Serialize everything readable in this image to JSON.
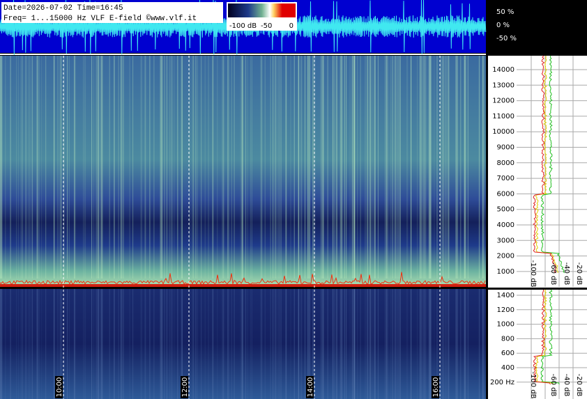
{
  "header": {
    "line1": "Date=2026-07-02 Time=16:45",
    "line2": "Freq= 1...15000 Hz   VLF E-field ©www.vlf.it"
  },
  "colorbar": {
    "labels": [
      "-100 dB",
      "-50",
      "0"
    ]
  },
  "waveform": {
    "labels": [
      "50 %",
      "0 %",
      "-50 %"
    ]
  },
  "spectrogram": {
    "freq_labels": [
      "14000",
      "13000",
      "12000",
      "11000",
      "10000",
      "9000",
      "8000",
      "7000",
      "6000",
      "5000",
      "4000",
      "3000",
      "2000",
      "1000"
    ]
  },
  "zoom": {
    "freq_labels": [
      "1400",
      "1200",
      "1000",
      "800",
      "600",
      "400",
      "200 Hz"
    ]
  },
  "time_labels": [
    "10:00",
    "12:00",
    "14:00",
    "16:00"
  ],
  "spectrum": {
    "db_labels": [
      "-100 dB",
      "-60 dB",
      "-40 dB",
      "-20 dB"
    ]
  },
  "zoom_spectrum": {
    "db_labels": [
      "-100 dB",
      "-60 dB",
      "-40 dB",
      "-20 dB"
    ]
  }
}
